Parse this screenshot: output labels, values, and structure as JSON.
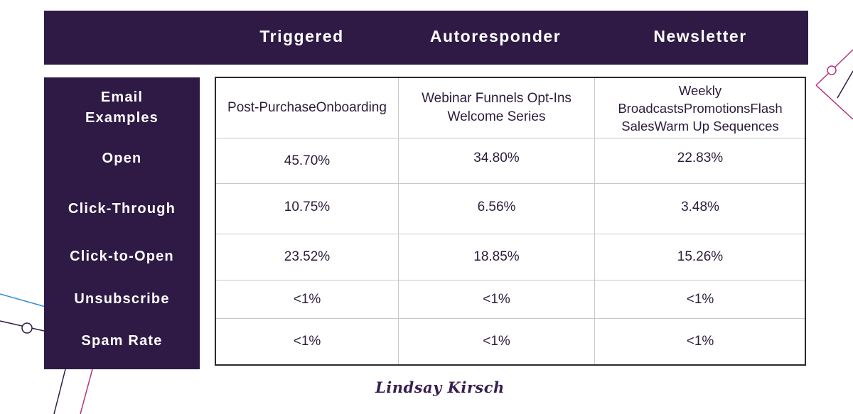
{
  "columns": [
    "Triggered",
    "Autoresponder",
    "Newsletter"
  ],
  "rows": [
    {
      "label": "Email Examples",
      "values": [
        "Post-PurchaseOnboarding",
        "Webinar Funnels Opt-Ins Welcome Series",
        "Weekly BroadcastsPromotionsFlash SalesWarm Up Sequences"
      ]
    },
    {
      "label": "Open",
      "values": [
        "45.70%",
        "34.80%",
        "22.83%"
      ]
    },
    {
      "label": "Click-Through",
      "values": [
        "10.75%",
        "6.56%",
        "3.48%"
      ]
    },
    {
      "label": "Click-to-Open",
      "values": [
        "23.52%",
        "18.85%",
        "15.26%"
      ]
    },
    {
      "label": "Unsubscribe",
      "values": [
        "<1%",
        "<1%",
        "<1%"
      ]
    },
    {
      "label": "Spam Rate",
      "values": [
        "<1%",
        "<1%",
        "<1%"
      ]
    }
  ],
  "signature": "Lindsay Kirsch",
  "colors": {
    "header_bg": "#2e1a45",
    "text_dark": "#2d1c3c",
    "accent_pink": "#b8327e",
    "accent_blue": "#2f8fd0"
  }
}
